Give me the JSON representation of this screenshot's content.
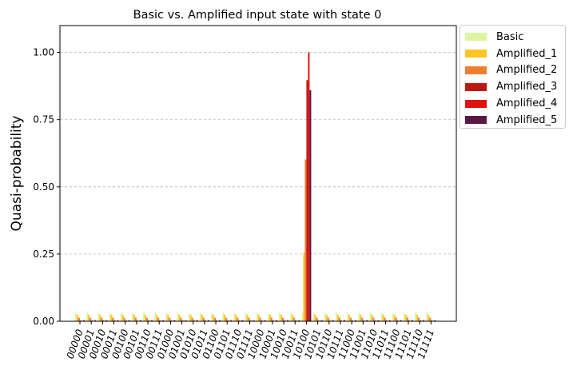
{
  "chart_data": {
    "type": "bar",
    "title": "Basic vs. Amplified input state with state 0",
    "xlabel": "",
    "ylabel": "Quasi-probability",
    "ylim": [
      0,
      1.1
    ],
    "yticks": [
      "0.00",
      "0.25",
      "0.50",
      "0.75",
      "1.00"
    ],
    "grid": "y-dashed",
    "legend_position": "outside-top-right",
    "categories": [
      "00000",
      "00001",
      "00010",
      "00011",
      "00100",
      "00101",
      "00110",
      "00111",
      "01000",
      "01001",
      "01010",
      "01011",
      "01100",
      "01101",
      "01110",
      "01111",
      "10000",
      "10001",
      "10010",
      "10011",
      "10100",
      "10101",
      "10110",
      "10111",
      "11000",
      "11001",
      "11010",
      "11011",
      "11100",
      "11101",
      "11110",
      "11111"
    ],
    "series": [
      {
        "name": "Basic",
        "color": "#dcf5a0",
        "values": [
          0.031,
          0.031,
          0.031,
          0.031,
          0.031,
          0.031,
          0.031,
          0.031,
          0.031,
          0.031,
          0.031,
          0.031,
          0.031,
          0.031,
          0.031,
          0.031,
          0.031,
          0.031,
          0.031,
          0.031,
          0.031,
          0.031,
          0.031,
          0.031,
          0.031,
          0.031,
          0.031,
          0.031,
          0.031,
          0.031,
          0.031,
          0.031
        ]
      },
      {
        "name": "Amplified_1",
        "color": "#fcc425",
        "values": [
          0.024,
          0.024,
          0.024,
          0.024,
          0.024,
          0.024,
          0.024,
          0.024,
          0.024,
          0.024,
          0.024,
          0.024,
          0.024,
          0.024,
          0.024,
          0.024,
          0.024,
          0.024,
          0.024,
          0.024,
          0.256,
          0.024,
          0.024,
          0.024,
          0.024,
          0.024,
          0.024,
          0.024,
          0.024,
          0.024,
          0.024,
          0.024
        ]
      },
      {
        "name": "Amplified_2",
        "color": "#f07e2e",
        "values": [
          0.013,
          0.013,
          0.013,
          0.013,
          0.013,
          0.013,
          0.013,
          0.013,
          0.013,
          0.013,
          0.013,
          0.013,
          0.013,
          0.013,
          0.013,
          0.013,
          0.013,
          0.013,
          0.013,
          0.013,
          0.602,
          0.013,
          0.013,
          0.013,
          0.013,
          0.013,
          0.013,
          0.013,
          0.013,
          0.013,
          0.013,
          0.013
        ]
      },
      {
        "name": "Amplified_3",
        "color": "#bb1a13",
        "values": [
          0.003,
          0.003,
          0.003,
          0.003,
          0.003,
          0.003,
          0.003,
          0.003,
          0.003,
          0.003,
          0.003,
          0.003,
          0.003,
          0.003,
          0.003,
          0.003,
          0.003,
          0.003,
          0.003,
          0.003,
          0.897,
          0.003,
          0.003,
          0.003,
          0.003,
          0.003,
          0.003,
          0.003,
          0.003,
          0.003,
          0.003,
          0.003
        ]
      },
      {
        "name": "Amplified_4",
        "color": "#e0120e",
        "values": [
          0.0,
          0.0,
          0.0,
          0.0,
          0.0,
          0.0,
          0.0,
          0.0,
          0.0,
          0.0,
          0.0,
          0.0,
          0.0,
          0.0,
          0.0,
          0.0,
          0.0,
          0.0,
          0.0,
          0.0,
          1.0,
          0.0,
          0.0,
          0.0,
          0.0,
          0.0,
          0.0,
          0.0,
          0.0,
          0.0,
          0.0,
          0.0
        ]
      },
      {
        "name": "Amplified_5",
        "color": "#5a1845",
        "values": [
          0.004,
          0.004,
          0.004,
          0.004,
          0.004,
          0.004,
          0.004,
          0.004,
          0.004,
          0.004,
          0.004,
          0.004,
          0.004,
          0.004,
          0.004,
          0.004,
          0.004,
          0.004,
          0.004,
          0.004,
          0.86,
          0.004,
          0.004,
          0.004,
          0.004,
          0.004,
          0.004,
          0.004,
          0.004,
          0.004,
          0.004,
          0.004
        ]
      }
    ]
  }
}
